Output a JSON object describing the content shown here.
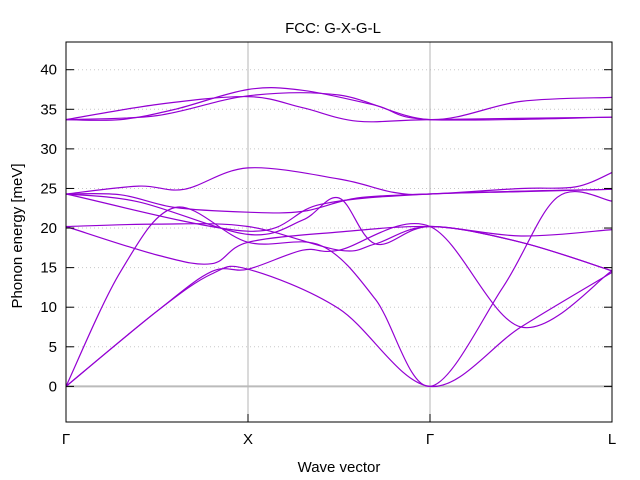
{
  "chart_data": {
    "type": "line",
    "title": "FCC: G-X-G-L",
    "xlabel": "Wave vector",
    "ylabel": "Phonon energy [meV]",
    "ylim": [
      -4.5,
      43.5
    ],
    "xlim": [
      0,
      3
    ],
    "yticks": [
      0,
      5,
      10,
      15,
      20,
      25,
      30,
      35,
      40
    ],
    "x_ticks": [
      {
        "x": 0,
        "label": "Γ"
      },
      {
        "x": 1,
        "label": "X"
      },
      {
        "x": 2,
        "label": "Γ"
      },
      {
        "x": 3,
        "label": "L"
      }
    ],
    "vertical_lines_at": [
      1,
      2
    ],
    "horizontal_grid": "dotted",
    "zero_line": true,
    "line_color": "#9400d3",
    "zero_line_color": "#bbbbbb",
    "series": [
      {
        "points": [
          [
            0,
            0
          ],
          [
            0.5,
            9.5
          ],
          [
            0.8,
            14.2
          ],
          [
            1,
            14.8
          ],
          [
            1.5,
            9.8
          ],
          [
            2,
            0
          ],
          [
            2.5,
            7.5
          ],
          [
            3,
            14.4
          ]
        ]
      },
      {
        "points": [
          [
            0,
            0
          ],
          [
            0.5,
            9.5
          ],
          [
            0.8,
            14.5
          ],
          [
            1,
            14.8
          ],
          [
            1.3,
            17.2
          ],
          [
            1.5,
            17.2
          ],
          [
            2,
            20.2
          ],
          [
            2.5,
            7.5
          ],
          [
            3,
            14.6
          ]
        ]
      },
      {
        "points": [
          [
            0,
            0
          ],
          [
            0.3,
            14.5
          ],
          [
            0.6,
            22.6
          ],
          [
            1,
            18.2
          ],
          [
            1.4,
            17.8
          ],
          [
            1.7,
            11
          ],
          [
            2,
            0
          ],
          [
            2.4,
            12.5
          ],
          [
            2.7,
            23.9
          ],
          [
            3,
            23.4
          ]
        ]
      },
      {
        "points": [
          [
            0,
            20.2
          ],
          [
            0.5,
            16.6
          ],
          [
            0.8,
            15.5
          ],
          [
            1,
            18.2
          ],
          [
            1.5,
            19.5
          ],
          [
            2,
            20.2
          ],
          [
            2.5,
            19
          ],
          [
            3,
            19.8
          ]
        ]
      },
      {
        "points": [
          [
            0,
            20.2
          ],
          [
            0.5,
            20.5
          ],
          [
            1,
            20.2
          ],
          [
            1.5,
            17.2
          ],
          [
            1.7,
            18
          ],
          [
            2,
            20.2
          ],
          [
            2.5,
            18.2
          ],
          [
            3,
            14.6
          ]
        ]
      },
      {
        "points": [
          [
            0,
            24.3
          ],
          [
            0.4,
            23.3
          ],
          [
            1,
            19.2
          ],
          [
            1.3,
            21
          ],
          [
            1.5,
            23.8
          ],
          [
            1.7,
            18
          ],
          [
            2,
            20.2
          ],
          [
            2.5,
            18.2
          ],
          [
            3,
            14.6
          ]
        ]
      },
      {
        "points": [
          [
            0,
            24.3
          ],
          [
            0.3,
            24.2
          ],
          [
            0.6,
            22.6
          ],
          [
            1,
            22
          ],
          [
            1.3,
            22.1
          ],
          [
            1.6,
            23.8
          ],
          [
            2,
            24.3
          ],
          [
            2.5,
            24.6
          ],
          [
            3,
            24.9
          ]
        ]
      },
      {
        "points": [
          [
            0,
            24.3
          ],
          [
            0.4,
            25.3
          ],
          [
            0.65,
            24.9
          ],
          [
            1,
            27.6
          ],
          [
            1.5,
            26.2
          ],
          [
            1.8,
            24.5
          ],
          [
            2,
            24.3
          ],
          [
            2.5,
            25
          ],
          [
            2.8,
            25.2
          ],
          [
            3,
            27
          ]
        ]
      },
      {
        "points": [
          [
            0,
            24.3
          ],
          [
            1,
            19.6
          ],
          [
            1.4,
            23
          ],
          [
            2,
            24.3
          ],
          [
            3,
            24.9
          ]
        ]
      },
      {
        "points": [
          [
            0,
            33.7
          ],
          [
            0.5,
            34.2
          ],
          [
            1,
            36.7
          ],
          [
            1.5,
            36.8
          ],
          [
            2,
            33.7
          ],
          [
            2.5,
            36
          ],
          [
            3,
            36.5
          ]
        ]
      },
      {
        "points": [
          [
            0,
            33.7
          ],
          [
            0.3,
            33.7
          ],
          [
            0.6,
            35
          ],
          [
            1,
            37.5
          ],
          [
            1.3,
            37.4
          ],
          [
            1.7,
            35.5
          ],
          [
            2,
            33.7
          ],
          [
            3,
            34
          ]
        ]
      },
      {
        "points": [
          [
            0,
            33.7
          ],
          [
            0.5,
            35.6
          ],
          [
            1,
            36.6
          ],
          [
            1.3,
            35.2
          ],
          [
            1.6,
            33.5
          ],
          [
            2,
            33.7
          ],
          [
            3,
            34
          ]
        ]
      }
    ]
  }
}
